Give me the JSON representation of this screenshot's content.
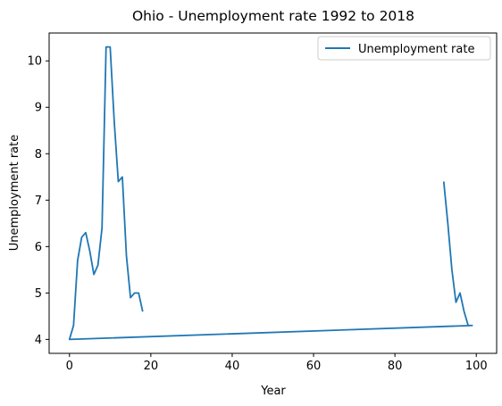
{
  "chart_data": {
    "type": "line",
    "title": "Ohio - Unemployment rate 1992 to 2018",
    "xlabel": "Year",
    "ylabel": "Unemployment rate",
    "xlim": [
      -5,
      105
    ],
    "ylim": [
      3.7,
      10.6
    ],
    "xticks": [
      0,
      20,
      40,
      60,
      80,
      100
    ],
    "yticks": [
      4,
      5,
      6,
      7,
      8,
      9,
      10
    ],
    "grid": false,
    "legend_position": "top-right",
    "color": "#1f77b4",
    "series": [
      {
        "name": "Unemployment rate",
        "x": [
          92,
          93,
          94,
          95,
          96,
          97,
          98,
          99,
          0,
          1,
          2,
          3,
          4,
          5,
          6,
          7,
          8,
          9,
          10,
          11,
          12,
          13,
          14,
          15,
          16,
          17,
          18
        ],
        "y": [
          7.4,
          6.5,
          5.5,
          4.8,
          5.0,
          4.6,
          4.3,
          4.3,
          4.0,
          4.3,
          5.7,
          6.2,
          6.3,
          5.9,
          5.4,
          5.6,
          6.4,
          10.3,
          10.3,
          8.7,
          7.4,
          7.5,
          5.8,
          4.9,
          5.0,
          5.0,
          4.6
        ]
      }
    ]
  }
}
